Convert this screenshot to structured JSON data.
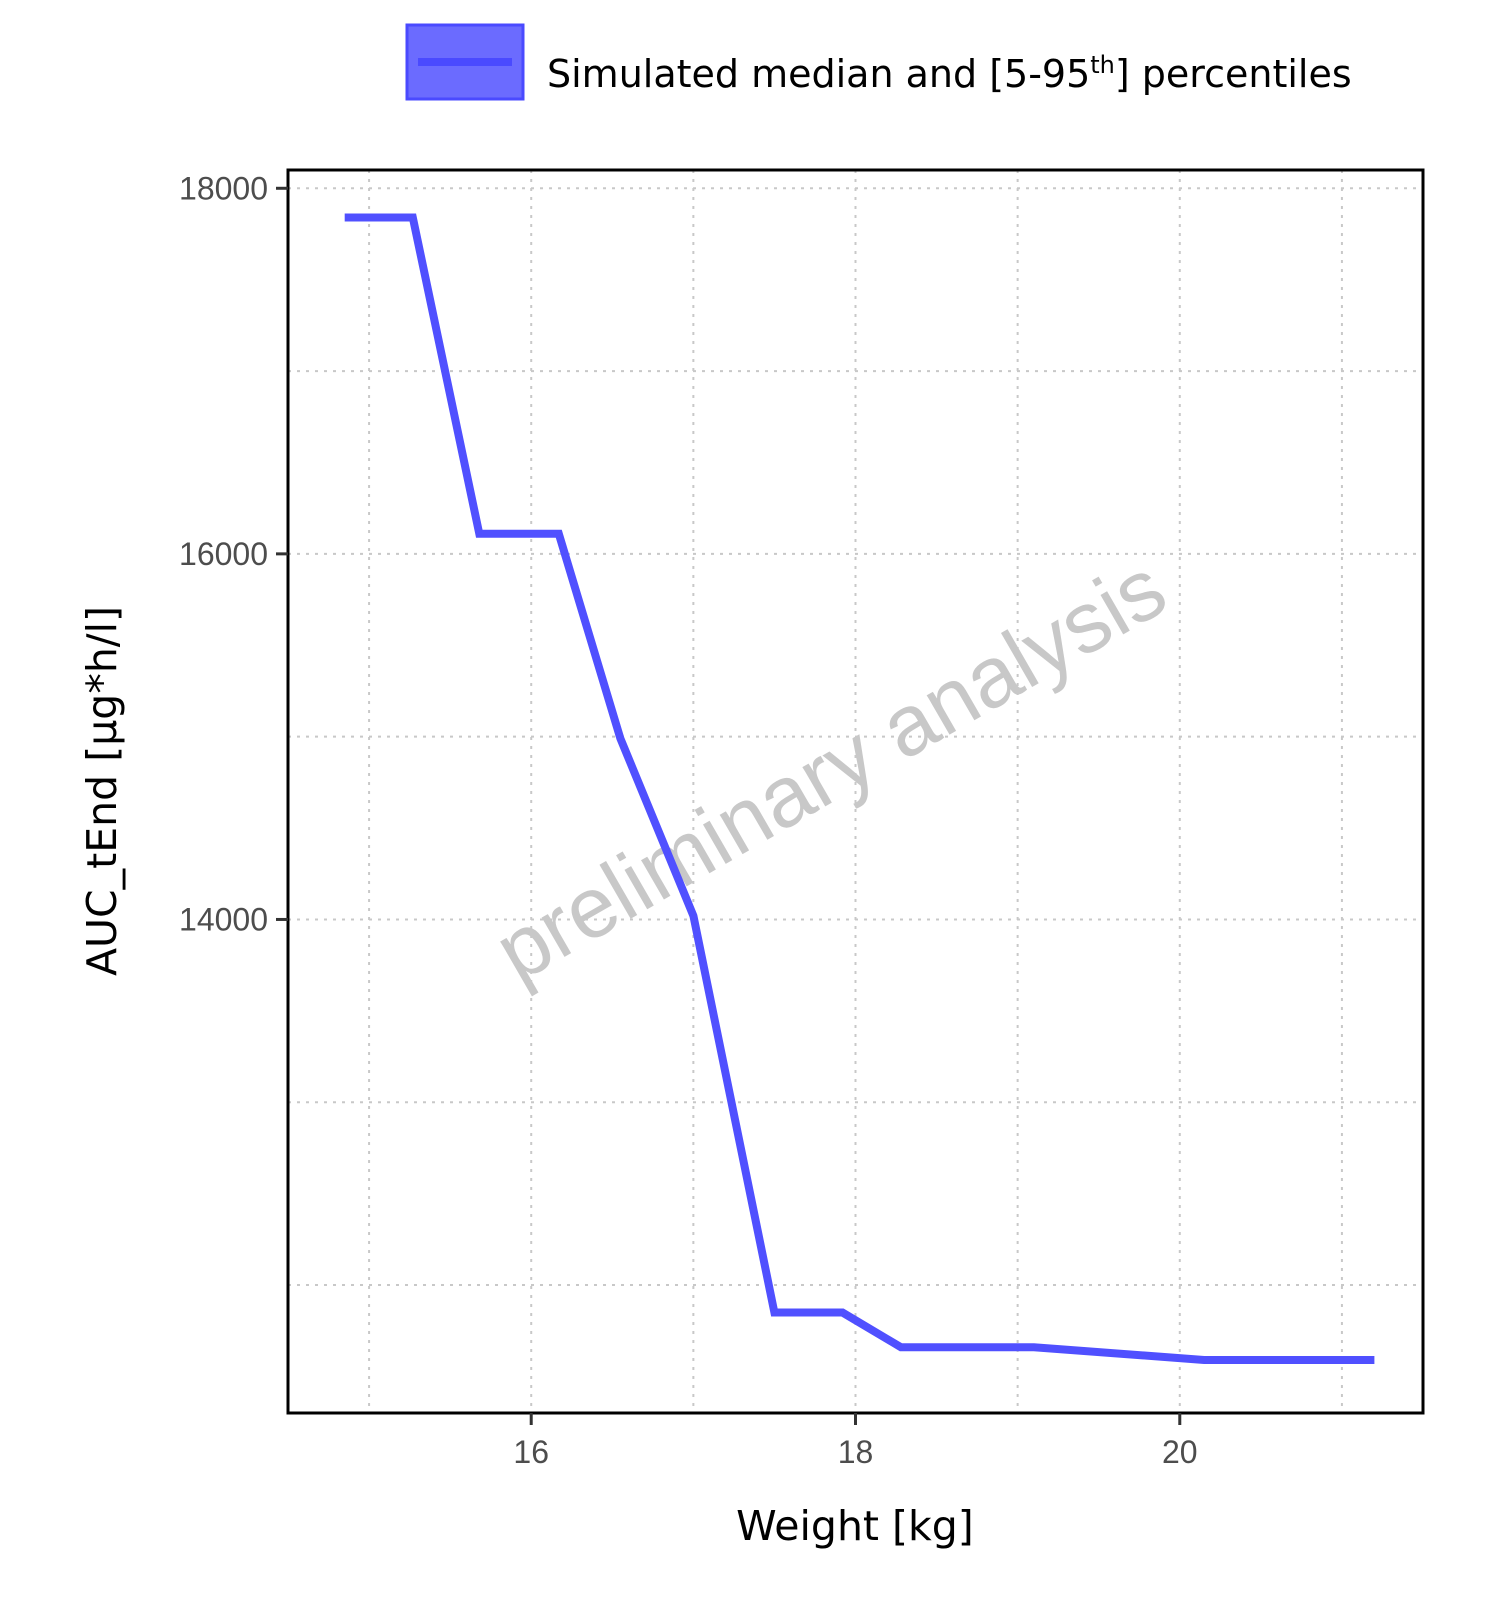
{
  "chart_data": {
    "type": "line",
    "xlabel": "Weight [kg]",
    "ylabel": "AUC_tEnd [µg*h/l]",
    "xlim": [
      14.5,
      21.5
    ],
    "ylim": [
      11300,
      18100
    ],
    "x_ticks": [
      16,
      18,
      20
    ],
    "x_tick_labels": [
      "16",
      "18",
      "20"
    ],
    "y_ticks": [
      14000,
      16000,
      18000
    ],
    "y_tick_labels": [
      "14000",
      "16000",
      "18000"
    ],
    "grid": true,
    "legend": {
      "placement": "top",
      "label": "Simulated median and [5-95",
      "label_sup": "th",
      "label_tail": "] percentiles"
    },
    "watermark": "preliminary analysis",
    "colors": {
      "series": "#5050ff",
      "band": "#6b6bff",
      "grid": "#c8c8c8",
      "axis": "#000000"
    },
    "series": [
      {
        "name": "Simulated median and [5-95th] percentiles",
        "x": [
          14.85,
          15.27,
          15.68,
          16.17,
          16.55,
          17.0,
          17.5,
          17.92,
          18.28,
          19.1,
          20.15,
          21.2
        ],
        "y": [
          17840,
          17840,
          16110,
          16110,
          14990,
          14020,
          11850,
          11850,
          11660,
          11660,
          11590,
          11590
        ]
      }
    ]
  }
}
